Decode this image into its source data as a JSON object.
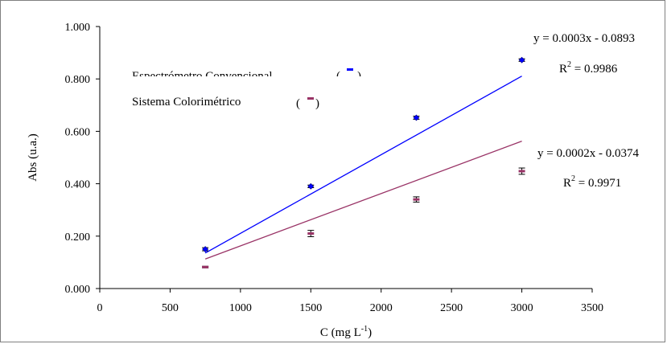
{
  "chart_data": {
    "type": "scatter",
    "title": "",
    "xlabel": "C (mg L",
    "xlabel_sup": "-1",
    "xlabel_tail": ")",
    "ylabel": "Abs (u.a.)",
    "xlim": [
      0,
      3500
    ],
    "ylim": [
      0,
      1.0
    ],
    "x_ticks": [
      "0",
      "500",
      "1000",
      "1500",
      "2000",
      "2500",
      "3000",
      "3500"
    ],
    "x_tick_values": [
      0,
      500,
      1000,
      1500,
      2000,
      2500,
      3000,
      3500
    ],
    "y_ticks": [
      "0.000",
      "0.200",
      "0.400",
      "0.600",
      "0.800",
      "1.000"
    ],
    "y_tick_values": [
      0,
      0.2,
      0.4,
      0.6,
      0.8,
      1.0
    ],
    "grid": false,
    "series": [
      {
        "name": "Espectrómetro Convencional",
        "color": "#0000ff",
        "x": [
          750,
          1500,
          2250,
          3000
        ],
        "y": [
          0.15,
          0.39,
          0.652,
          0.872
        ],
        "error": [
          0.006,
          0.005,
          0.006,
          0.005
        ],
        "trend": {
          "slope": 0.0003,
          "intercept": -0.0893
        },
        "equation": "y = 0.0003x - 0.0893",
        "r2_label": "R",
        "r2_sup": "2",
        "r2_value": " = 0.9986"
      },
      {
        "name": "Sistema Colorimétrico",
        "color": "#993366",
        "x": [
          750,
          1500,
          2250,
          3000
        ],
        "y": [
          0.082,
          0.21,
          0.34,
          0.448
        ],
        "error": [
          0.003,
          0.012,
          0.01,
          0.012
        ],
        "trend": {
          "slope": 0.0002,
          "intercept": -0.0374
        },
        "equation": "y = 0.0002x - 0.0374",
        "r2_label": "R",
        "r2_sup": "2",
        "r2_value": " = 0.9971"
      }
    ],
    "legend_items": [
      {
        "label": "Espectrómetro Convencional",
        "open": "(",
        "close": ")"
      },
      {
        "label": "Sistema Colorimétrico",
        "open": "(",
        "close": ")"
      }
    ]
  }
}
